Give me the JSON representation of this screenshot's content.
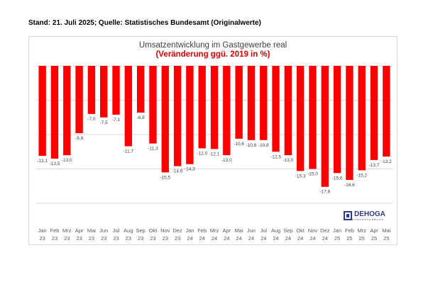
{
  "caption": "Stand: 21. Juli 2025; Quelle: Statistisches Bundesamt (Originalwerte)",
  "logo": {
    "text": "DEHOGA",
    "subtext": "BUNDESVERBAND"
  },
  "chart_data": {
    "type": "bar",
    "title": "Umsatzentwicklung im Gastgewerbe real",
    "subtitle": "(Veränderung ggü. 2019 in %)",
    "categories": [
      [
        "Jan",
        "23"
      ],
      [
        "Feb",
        "23"
      ],
      [
        "Mrz",
        "23"
      ],
      [
        "Apr",
        "23"
      ],
      [
        "Mai",
        "23"
      ],
      [
        "Jun",
        "23"
      ],
      [
        "Jul",
        "23"
      ],
      [
        "Aug",
        "23"
      ],
      [
        "Sep",
        "23"
      ],
      [
        "Okt",
        "23"
      ],
      [
        "Nov",
        "23"
      ],
      [
        "Dez",
        "23"
      ],
      [
        "Jan",
        "24"
      ],
      [
        "Feb",
        "24"
      ],
      [
        "Mrz",
        "24"
      ],
      [
        "Apr",
        "24"
      ],
      [
        "Mai",
        "24"
      ],
      [
        "Jun",
        "24"
      ],
      [
        "Jul",
        "24"
      ],
      [
        "Aug",
        "24"
      ],
      [
        "Sep",
        "24"
      ],
      [
        "Okt",
        "24"
      ],
      [
        "Nov",
        "24"
      ],
      [
        "Dez",
        "24"
      ],
      [
        "Jan",
        "25"
      ],
      [
        "Feb",
        "25"
      ],
      [
        "Mrz",
        "25"
      ],
      [
        "Apr",
        "25"
      ],
      [
        "Mai",
        "25"
      ]
    ],
    "values": [
      -13.1,
      -13.5,
      -13.0,
      -9.8,
      -7.0,
      -7.5,
      -7.1,
      -11.7,
      -6.8,
      -11.3,
      -15.5,
      -14.6,
      -14.3,
      -12.0,
      -12.1,
      -13.0,
      -10.6,
      -10.8,
      -10.8,
      -12.5,
      -13.0,
      -15.3,
      -15.0,
      -17.6,
      -15.6,
      -16.6,
      -15.2,
      -13.7,
      -13.2
    ],
    "labels": [
      "-13,1",
      "-13,5",
      "-13,0",
      "-9,8",
      "-7,0",
      "-7,5",
      "-7,1",
      "-11,7",
      "-6,8",
      "-11,3",
      "-15,5",
      "-14,6",
      "-14,3",
      "-12,0",
      "-12,1",
      "-13,0",
      "-10,6",
      "-10,8",
      "-10,8",
      "-12,5",
      "-13,0",
      "-15,3",
      "-15,0",
      "-17,6",
      "-15,6",
      "-16,6",
      "-15,2",
      "-13,7",
      "-13,2"
    ],
    "ylim": [
      -20,
      0
    ],
    "grid": true,
    "bar_color": "#ff0000",
    "title_color": "#404040",
    "subtitle_color": "#e00000"
  }
}
